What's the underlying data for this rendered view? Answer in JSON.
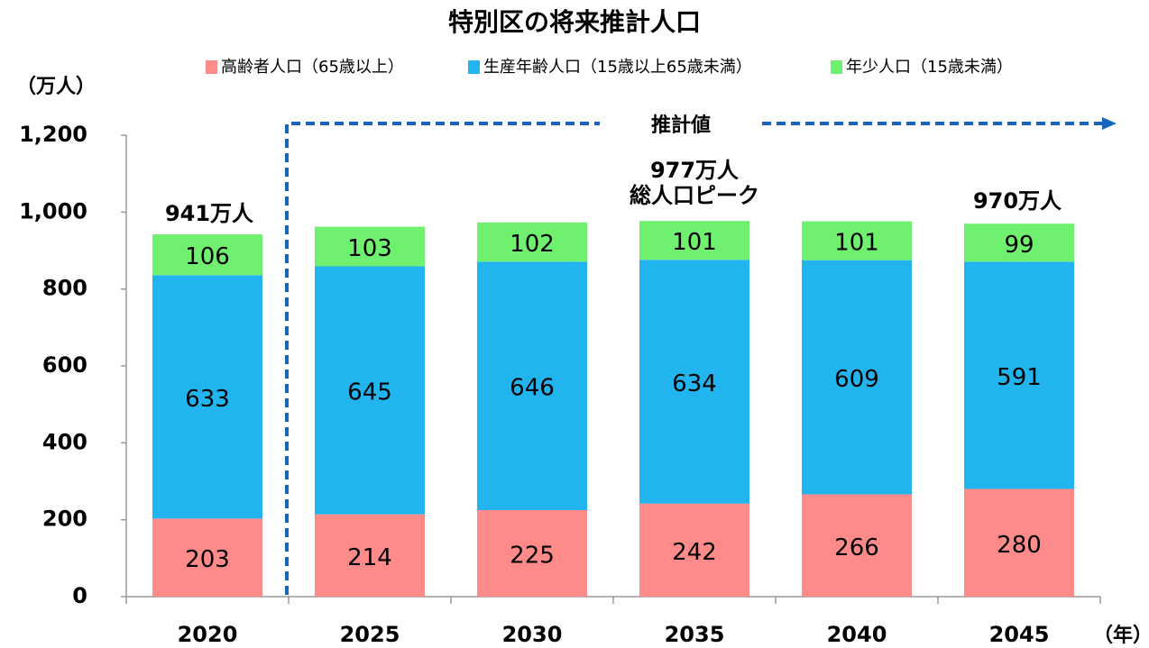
{
  "chart_data": {
    "type": "stacked_bar",
    "title": "特別区の将来推計人口",
    "y_label": "（万人）",
    "x_label": "（年）",
    "categories": [
      "2020",
      "2025",
      "2030",
      "2035",
      "2040",
      "2045"
    ],
    "series": [
      {
        "name": "高齢者人口（65歳以上）",
        "color": "#ff8a8a",
        "values": [
          203,
          214,
          225,
          242,
          266,
          280
        ]
      },
      {
        "name": "生産年齢人口（15歳以上65歳未満）",
        "color": "#22b4ef",
        "values": [
          633,
          645,
          646,
          634,
          609,
          591
        ]
      },
      {
        "name": "年少人口（15歳未満）",
        "color": "#6ff06f",
        "values": [
          106,
          103,
          102,
          101,
          101,
          99
        ]
      }
    ],
    "annotations": [
      "941万人",
      "977万人",
      "総人口ピーク",
      "970万人",
      "推計値"
    ],
    "ylim": [
      0,
      1200
    ],
    "yticks": [
      0,
      200,
      400,
      600,
      800,
      {
        "value": 1000,
        "label": "1,000"
      },
      {
        "value": 1200,
        "label": "1,200"
      }
    ],
    "grid": false,
    "legend": "top"
  }
}
